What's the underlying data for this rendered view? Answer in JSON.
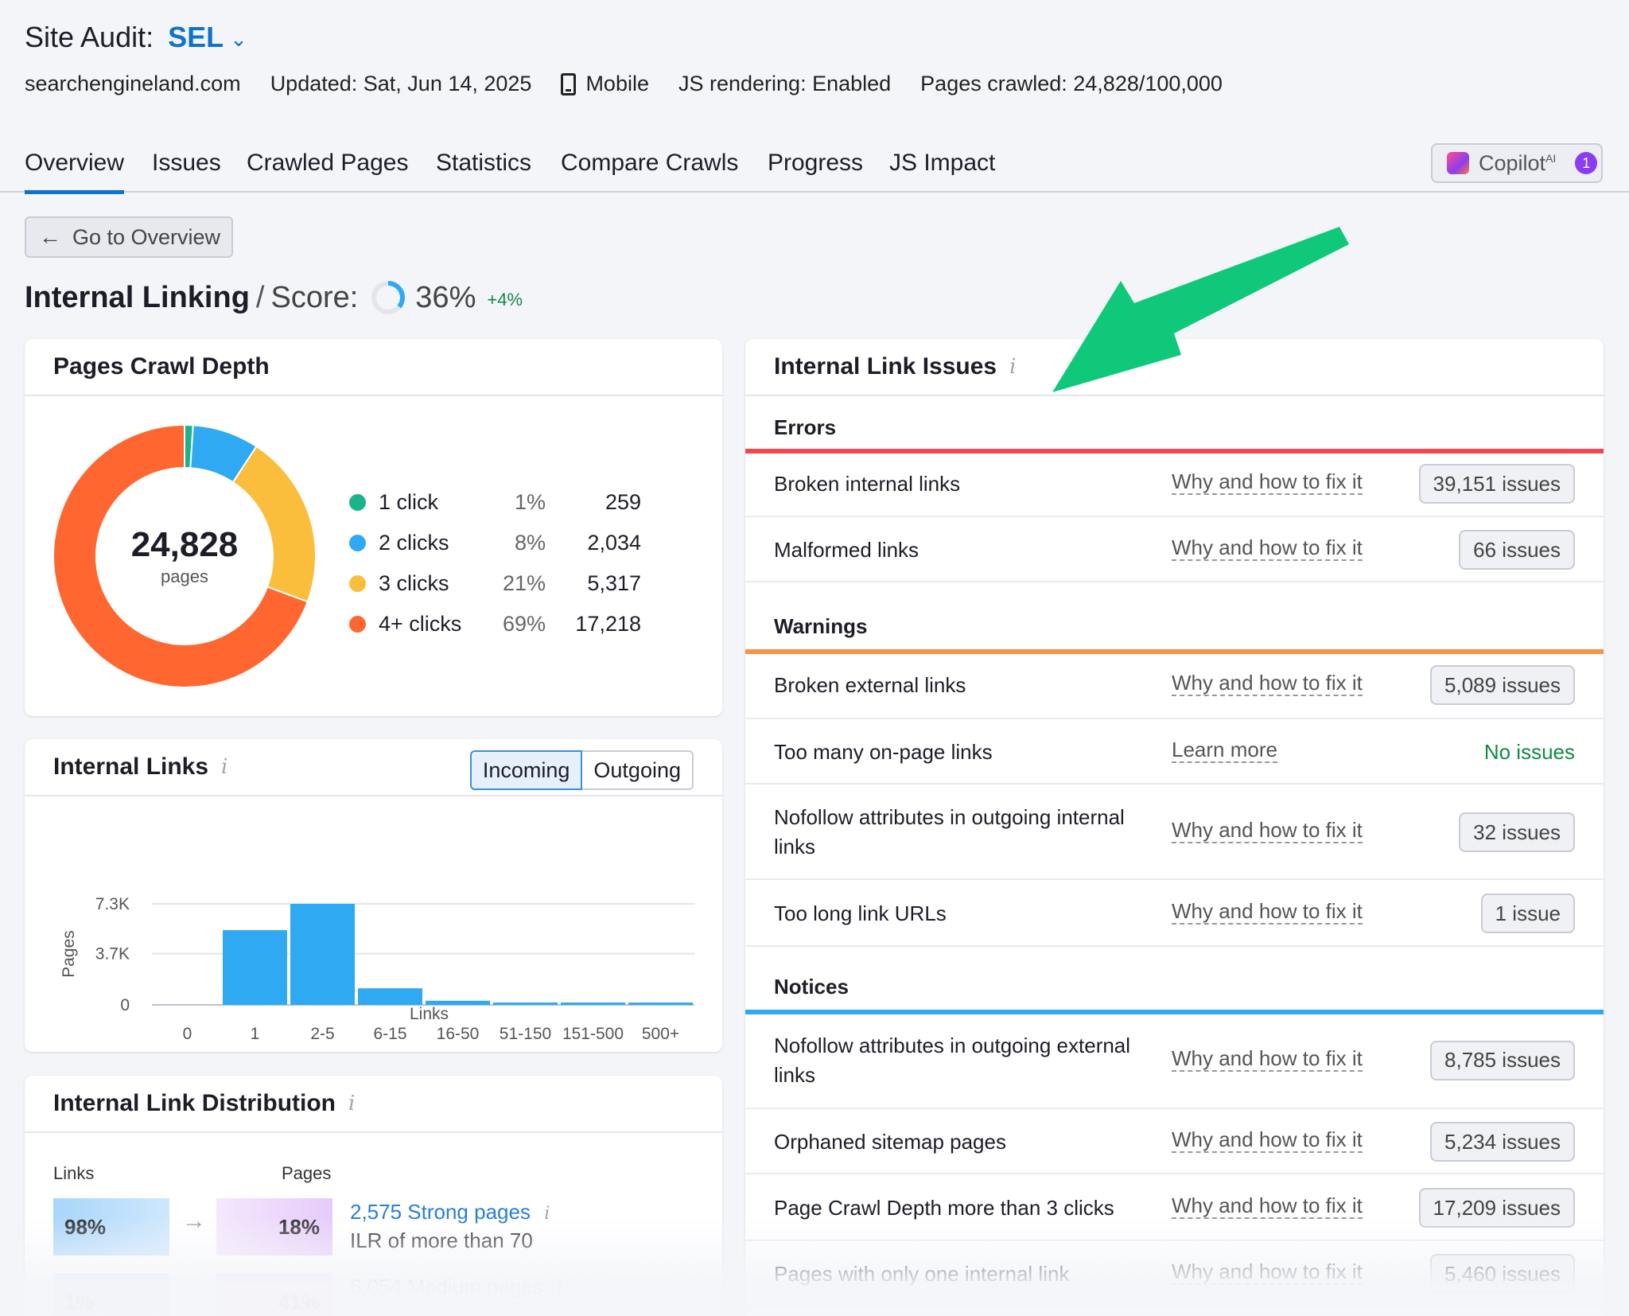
{
  "header": {
    "title_prefix": "Site Audit:",
    "project": "SEL",
    "domain": "searchengineland.com",
    "updated": "Updated: Sat, Jun 14, 2025",
    "device": "Mobile",
    "js_rendering": "JS rendering: Enabled",
    "pages_crawled": "Pages crawled: 24,828/100,000"
  },
  "tabs": [
    "Overview",
    "Issues",
    "Crawled Pages",
    "Statistics",
    "Compare Crawls",
    "Progress",
    "JS Impact"
  ],
  "copilot": {
    "label": "Copilot",
    "sup": "AI",
    "count": "1"
  },
  "back_button": "Go to Overview",
  "score": {
    "title": "Internal Linking",
    "label": "Score:",
    "value": "36%",
    "value_num": 36,
    "delta": "+4%"
  },
  "crawl_depth": {
    "title": "Pages Crawl Depth",
    "total": "24,828",
    "total_label": "pages",
    "items": [
      {
        "label": "1 click",
        "pct": "1%",
        "count": "259",
        "value": 259,
        "color": "#1bb38a"
      },
      {
        "label": "2 clicks",
        "pct": "8%",
        "count": "2,034",
        "value": 2034,
        "color": "#2ea9f2"
      },
      {
        "label": "3 clicks",
        "pct": "21%",
        "count": "5,317",
        "value": 5317,
        "color": "#fbbd3c"
      },
      {
        "label": "4+ clicks",
        "pct": "69%",
        "count": "17,218",
        "value": 17218,
        "color": "#ff6630"
      }
    ]
  },
  "internal_links": {
    "title": "Internal Links",
    "toggle": [
      "Incoming",
      "Outgoing"
    ]
  },
  "chart_data": {
    "type": "bar",
    "categories": [
      "0",
      "1",
      "2-5",
      "6-15",
      "16-50",
      "51-150",
      "151-500",
      "500+"
    ],
    "values": [
      0,
      5400,
      7300,
      1200,
      300,
      150,
      120,
      120
    ],
    "ylabel": "Pages",
    "xlabel": "Links",
    "yticks": [
      "7.3K",
      "3.7K",
      "0"
    ],
    "ytick_values": [
      7300,
      3700,
      0
    ],
    "ylim": [
      0,
      7300
    ],
    "color": "#2ea9f2"
  },
  "distribution": {
    "title": "Internal Link Distribution",
    "col_links": "Links",
    "col_pages": "Pages",
    "rows": [
      {
        "links_pct": "98%",
        "pages_pct": "18%",
        "link": "2,575 Strong pages",
        "sub": "ILR of more than 70"
      },
      {
        "links_pct": "1%",
        "pages_pct": "41%",
        "link": "6,054 Medium pages",
        "sub": ""
      }
    ]
  },
  "issues": {
    "title": "Internal Link Issues",
    "sections": [
      {
        "name": "Errors",
        "color": "#f04850",
        "rows": [
          {
            "name": "Broken internal links",
            "link": "Why and how to fix it",
            "count": "39,151 issues"
          },
          {
            "name": "Malformed links",
            "link": "Why and how to fix it",
            "count": "66 issues"
          }
        ]
      },
      {
        "name": "Warnings",
        "color": "#f7934c",
        "rows": [
          {
            "name": "Broken external links",
            "link": "Why and how to fix it",
            "count": "5,089 issues"
          },
          {
            "name": "Too many on-page links",
            "link": "Learn more",
            "count": "No issues"
          },
          {
            "name": "Nofollow attributes in outgoing internal links",
            "link": "Why and how to fix it",
            "count": "32 issues"
          },
          {
            "name": "Too long link URLs",
            "link": "Why and how to fix it",
            "count": "1 issue"
          }
        ]
      },
      {
        "name": "Notices",
        "color": "#2ea9f2",
        "rows": [
          {
            "name": "Nofollow attributes in outgoing external links",
            "link": "Why and how to fix it",
            "count": "8,785 issues"
          },
          {
            "name": "Orphaned sitemap pages",
            "link": "Why and how to fix it",
            "count": "5,234 issues"
          },
          {
            "name": "Page Crawl Depth more than 3 clicks",
            "link": "Why and how to fix it",
            "count": "17,209 issues"
          },
          {
            "name": "Pages with only one internal link",
            "link": "Why and how to fix it",
            "count": "5,460 issues"
          }
        ]
      }
    ]
  },
  "colors": {
    "accent": "#0d74ce",
    "annotation_arrow": "#10c879"
  }
}
